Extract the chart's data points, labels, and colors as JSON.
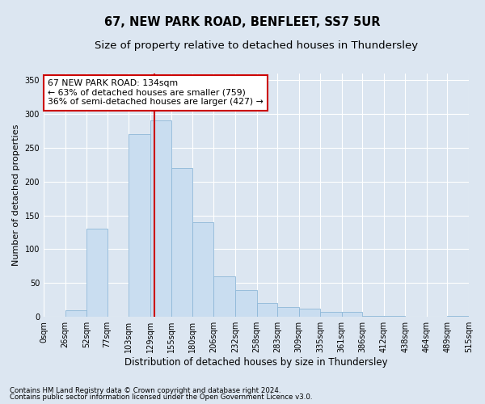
{
  "title": "67, NEW PARK ROAD, BENFLEET, SS7 5UR",
  "subtitle": "Size of property relative to detached houses in Thundersley",
  "xlabel": "Distribution of detached houses by size in Thundersley",
  "ylabel": "Number of detached properties",
  "footnote1": "Contains HM Land Registry data © Crown copyright and database right 2024.",
  "footnote2": "Contains public sector information licensed under the Open Government Licence v3.0.",
  "annotation_line1": "67 NEW PARK ROAD: 134sqm",
  "annotation_line2": "← 63% of detached houses are smaller (759)",
  "annotation_line3": "36% of semi-detached houses are larger (427) →",
  "bin_edges": [
    0,
    26,
    52,
    77,
    103,
    129,
    155,
    180,
    206,
    232,
    258,
    283,
    309,
    335,
    361,
    386,
    412,
    438,
    464,
    489,
    515
  ],
  "bar_heights": [
    0,
    10,
    130,
    0,
    270,
    290,
    220,
    140,
    60,
    40,
    20,
    15,
    12,
    8,
    8,
    2,
    2,
    0,
    0,
    2
  ],
  "bar_color": "#c9ddf0",
  "bar_edge_color": "#8fb8d8",
  "vline_color": "#cc0000",
  "vline_x": 134,
  "ylim": [
    0,
    360
  ],
  "yticks": [
    0,
    50,
    100,
    150,
    200,
    250,
    300,
    350
  ],
  "background_color": "#dce6f1",
  "plot_bg_color": "#dce6f1",
  "annotation_box_facecolor": "#ffffff",
  "annotation_box_edgecolor": "#cc0000",
  "title_fontsize": 10.5,
  "subtitle_fontsize": 9.5,
  "xlabel_fontsize": 8.5,
  "ylabel_fontsize": 8,
  "tick_fontsize": 7,
  "annotation_fontsize": 7.8,
  "footnote_fontsize": 6.2
}
